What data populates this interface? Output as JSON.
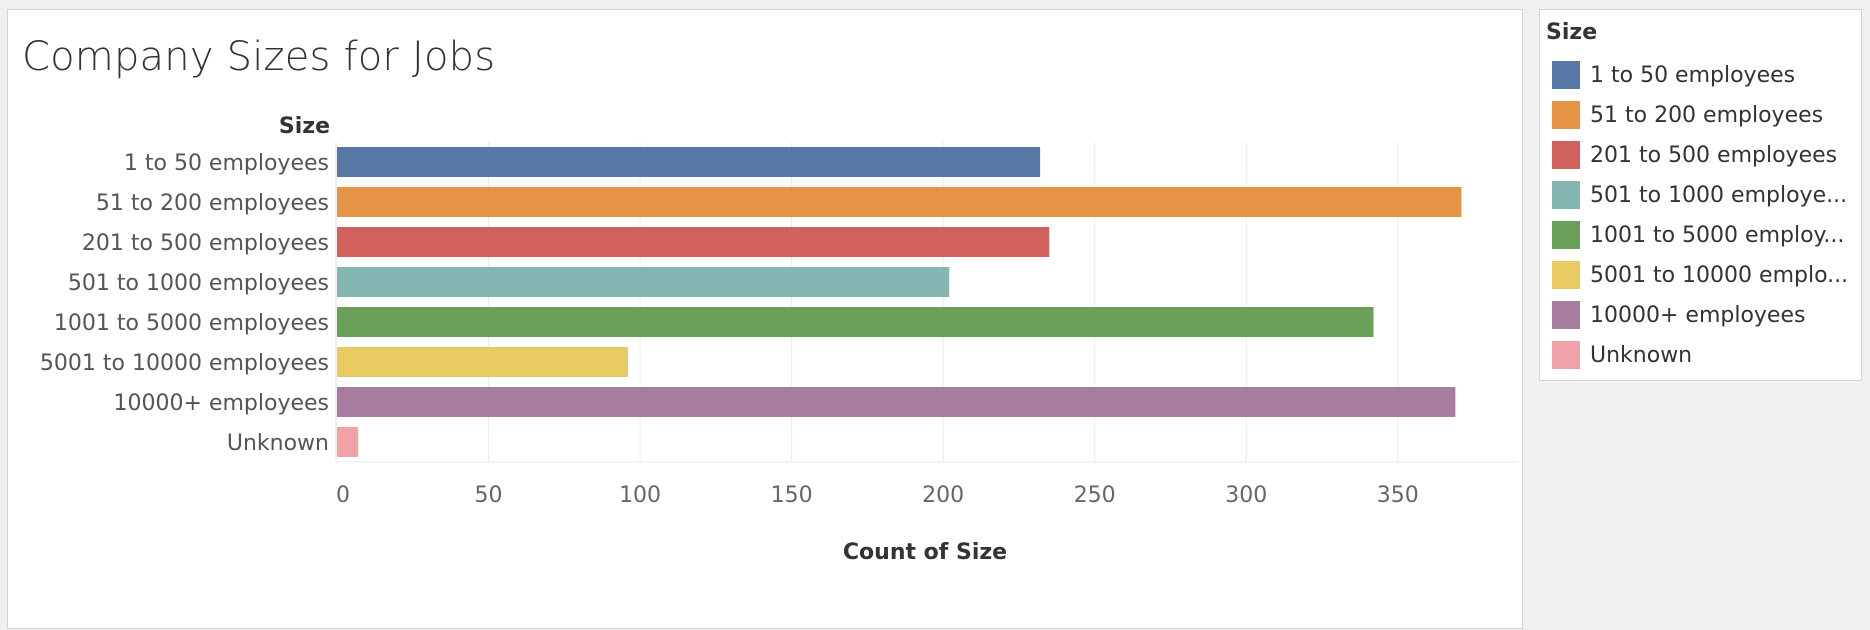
{
  "chart_data": {
    "type": "bar",
    "orientation": "horizontal",
    "title": "Company Sizes for Jobs",
    "category_axis_label": "Size",
    "xlabel": "Count of Size",
    "categories": [
      "1 to 50 employees",
      "51 to 200 employees",
      "201 to 500 employees",
      "501 to 1000 employees",
      "1001 to 5000 employees",
      "5001 to 10000 employees",
      "10000+ employees",
      "Unknown"
    ],
    "values": [
      232,
      371,
      235,
      202,
      342,
      96,
      369,
      7
    ],
    "colors": [
      "#5778a4",
      "#e49444",
      "#d1615d",
      "#85b6b2",
      "#6a9f58",
      "#e7ca60",
      "#a87c9f",
      "#f1a2a9"
    ],
    "xlim": [
      0,
      390
    ],
    "xticks": [
      0,
      50,
      100,
      150,
      200,
      250,
      300,
      350
    ],
    "grid": true,
    "legend_position": "right"
  },
  "legend": {
    "title": "Size",
    "items": [
      "1 to 50 employees",
      "51 to 200 employees",
      "201 to 500 employees",
      "501 to 1000 employe...",
      "1001 to 5000 employ...",
      "5001 to 10000 emplo...",
      "10000+ employees",
      "Unknown"
    ]
  }
}
